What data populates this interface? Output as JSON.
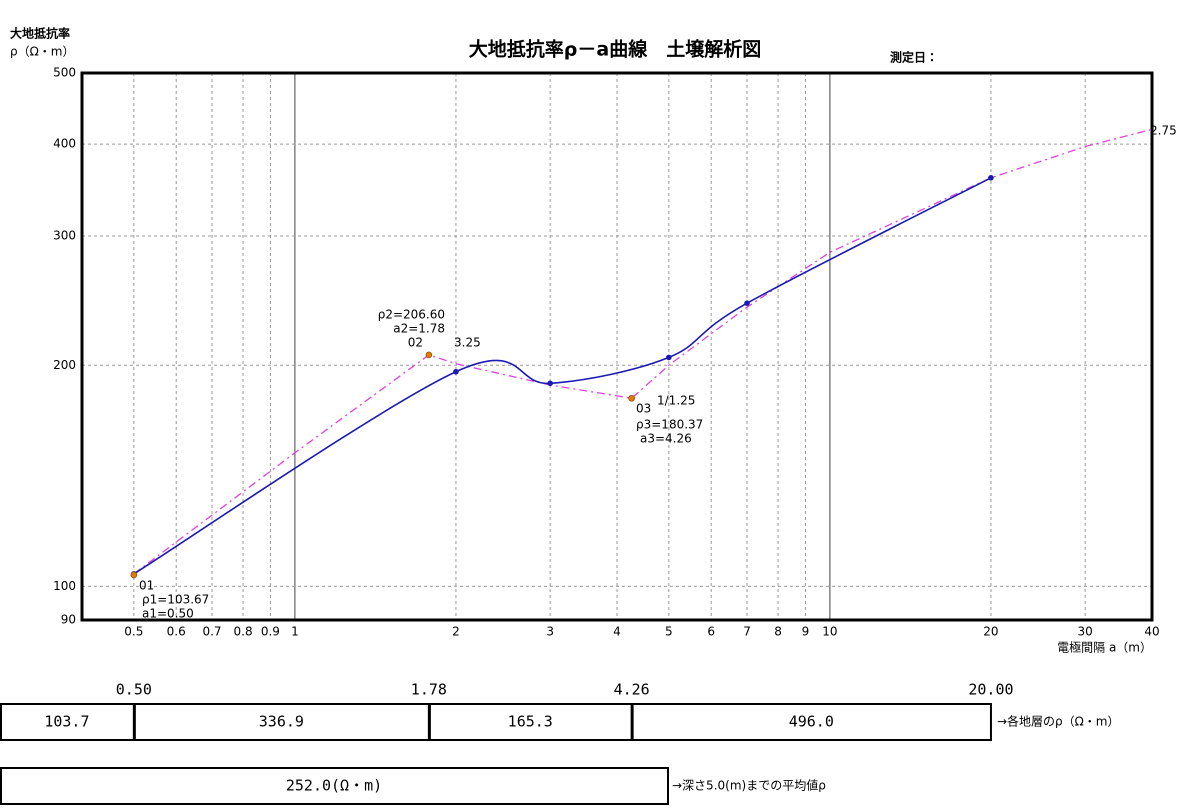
{
  "chart_data": {
    "type": "line",
    "title": "大地抵抗率ρ－a曲線　土壌解析図",
    "date_label": "測定日：",
    "y_label": [
      "大地抵抗率",
      "ρ（Ω・m）"
    ],
    "x_label": "電極間隔 a（m）",
    "log_x": true,
    "log_y": true,
    "grid": true,
    "xlim": [
      0.4,
      40
    ],
    "ylim": [
      90,
      500
    ],
    "xticks": [
      0.5,
      0.6,
      0.7,
      0.8,
      0.9,
      1,
      2,
      3,
      4,
      5,
      6,
      7,
      8,
      9,
      10,
      20,
      30,
      40
    ],
    "yticks": [
      90,
      100,
      200,
      300,
      400,
      500
    ],
    "series": [
      {
        "color": "#1a1ab4",
        "style": "smooth",
        "markers": true,
        "x": [
          0.5,
          2,
          3,
          5,
          7,
          20
        ],
        "values": [
          104,
          196,
          189,
          205,
          243,
          360
        ]
      },
      {
        "color": "#e040e0",
        "style": "dashed",
        "markers": false,
        "x": [
          0.5,
          1,
          1.78,
          2,
          3,
          4.26,
          5,
          7,
          10,
          20,
          30,
          40
        ],
        "values": [
          104,
          152,
          206.6,
          201,
          188,
          180.37,
          200,
          240,
          285,
          360,
          397,
          419
        ]
      }
    ],
    "layer_points": {
      "color": "#e07b00",
      "x": [
        0.5,
        1.78,
        4.26
      ],
      "values": [
        103.67,
        206.6,
        180.37
      ]
    },
    "annotations": [
      "01",
      "ρ1=103.67",
      "a1=0.50",
      "ρ2=206.60",
      "a2=1.78",
      "02",
      "3.25",
      "03",
      "1/1.25",
      "ρ3=180.37",
      "a3=4.26",
      "2.75"
    ]
  },
  "layers_table": {
    "boundaries": [
      {
        "value": 0.5,
        "label": "0.50"
      },
      {
        "value": 1.78,
        "label": "1.78"
      },
      {
        "value": 4.26,
        "label": "4.26"
      },
      {
        "value": 20,
        "label": "20.00"
      }
    ],
    "cells": [
      "103.7",
      "336.9",
      "165.3",
      "496.0"
    ],
    "label": "→各地層のρ（Ω・m）"
  },
  "average": {
    "cell": "252.0(Ω・m)",
    "label": "→深さ5.0(m)までの平均値ρ"
  }
}
